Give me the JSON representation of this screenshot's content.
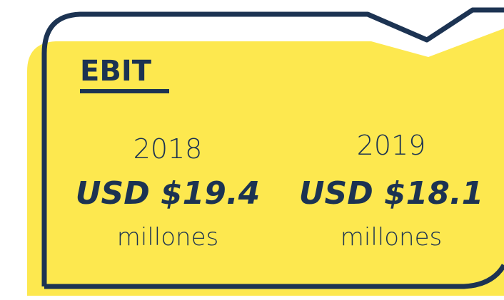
{
  "title": "EBIT",
  "items": [
    {
      "year": "2018",
      "value": "USD $19.4",
      "unit": "millones"
    },
    {
      "year": "2019",
      "value": "USD $18.1",
      "unit": "millones"
    }
  ]
}
